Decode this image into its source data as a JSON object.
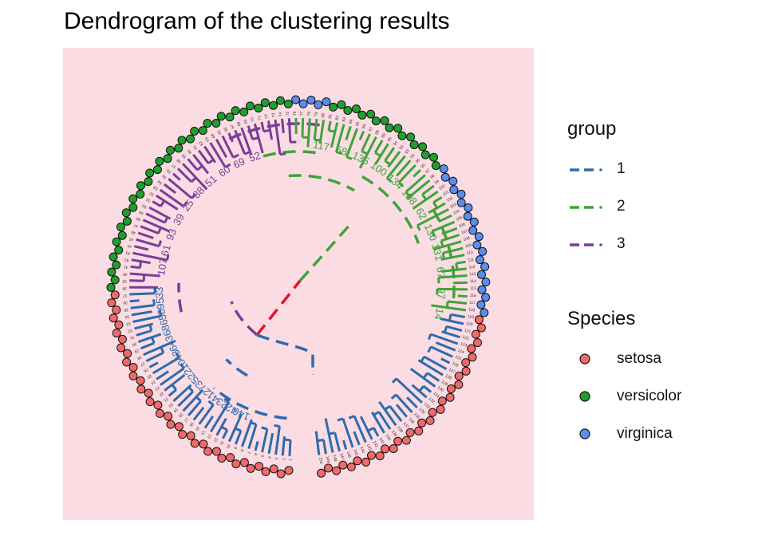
{
  "chart_data": {
    "type": "dendrogram",
    "layout": "circular",
    "title": "Dendrogram of the clustering results",
    "panel_background": "#fcdce3",
    "root_branch_color": "#e8112d",
    "group_legend": {
      "title": "group",
      "entries": [
        {
          "label": "1",
          "color": "#2e6bad"
        },
        {
          "label": "2",
          "color": "#3ea43a"
        },
        {
          "label": "3",
          "color": "#7a3d99"
        }
      ]
    },
    "species_legend": {
      "title": "Species",
      "entries": [
        {
          "label": "setosa",
          "color": "#f06a6a"
        },
        {
          "label": "versicolor",
          "color": "#1f9f2b"
        },
        {
          "label": "virginica",
          "color": "#5a8df0"
        }
      ]
    },
    "leaf_count": 150,
    "clusters": [
      {
        "group": "1",
        "species": "setosa",
        "start_deg": 92,
        "end_deg": 268
      },
      {
        "group": "2",
        "species": "versicolor/virginica",
        "start_deg": 268,
        "end_deg": 452
      },
      {
        "group": "3",
        "species": "versicolor",
        "start_deg": 178,
        "end_deg": 268
      }
    ],
    "internal_node_labels": {
      "group1": [
        "146",
        "42",
        "23",
        "41",
        "27",
        "35",
        "22",
        "10",
        "43",
        "64",
        "36",
        "86",
        "50",
        "95",
        "33"
      ],
      "group2": [
        "117",
        "58",
        "135",
        "100",
        "134",
        "108",
        "62",
        "130",
        "131",
        "67",
        "97",
        "14"
      ],
      "group3": [
        "107",
        "61",
        "93",
        "39",
        "25",
        "88",
        "51",
        "60",
        "69",
        "52"
      ]
    }
  }
}
